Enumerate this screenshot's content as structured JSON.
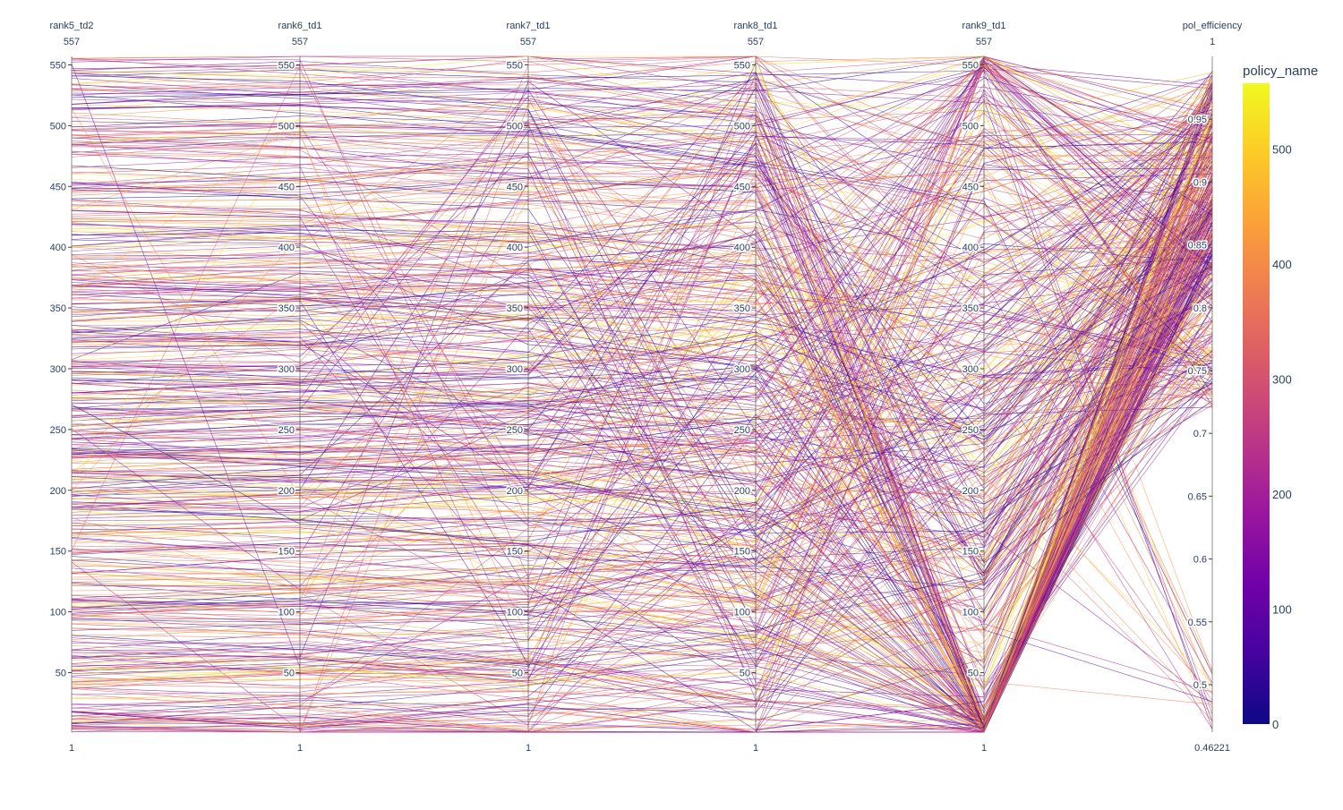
{
  "chart_data": {
    "type": "parallel_coordinates",
    "title": "",
    "dimensions": [
      {
        "label": "rank5_td2",
        "range": [
          1,
          557
        ],
        "min_label": "1",
        "max_label": "557",
        "ticks": [
          50,
          100,
          150,
          200,
          250,
          300,
          350,
          400,
          450,
          500,
          550
        ]
      },
      {
        "label": "rank6_td1",
        "range": [
          1,
          557
        ],
        "min_label": "1",
        "max_label": "557",
        "ticks": [
          50,
          100,
          150,
          200,
          250,
          300,
          350,
          400,
          450,
          500,
          550
        ]
      },
      {
        "label": "rank7_td1",
        "range": [
          1,
          557
        ],
        "min_label": "1",
        "max_label": "557",
        "ticks": [
          50,
          100,
          150,
          200,
          250,
          300,
          350,
          400,
          450,
          500,
          550
        ]
      },
      {
        "label": "rank8_td1",
        "range": [
          1,
          557
        ],
        "min_label": "1",
        "max_label": "557",
        "ticks": [
          50,
          100,
          150,
          200,
          250,
          300,
          350,
          400,
          450,
          500,
          550
        ]
      },
      {
        "label": "rank9_td1",
        "range": [
          1,
          557
        ],
        "min_label": "1",
        "max_label": "557",
        "ticks": [
          50,
          100,
          150,
          200,
          250,
          300,
          350,
          400,
          450,
          500,
          550
        ]
      },
      {
        "label": "pol_efficiency",
        "range": [
          0.46221,
          1
        ],
        "min_label": "0.46221",
        "max_label": "1",
        "ticks": [
          0.5,
          0.55,
          0.6,
          0.65,
          0.7,
          0.75,
          0.8,
          0.85,
          0.9,
          0.95
        ]
      }
    ],
    "color_dimension": "policy_name",
    "colorscale": "plasma",
    "colorbar": {
      "title": "policy_name",
      "range": [
        0,
        557
      ],
      "ticks": [
        0,
        100,
        200,
        300,
        400,
        500
      ]
    },
    "n_lines": 557
  }
}
